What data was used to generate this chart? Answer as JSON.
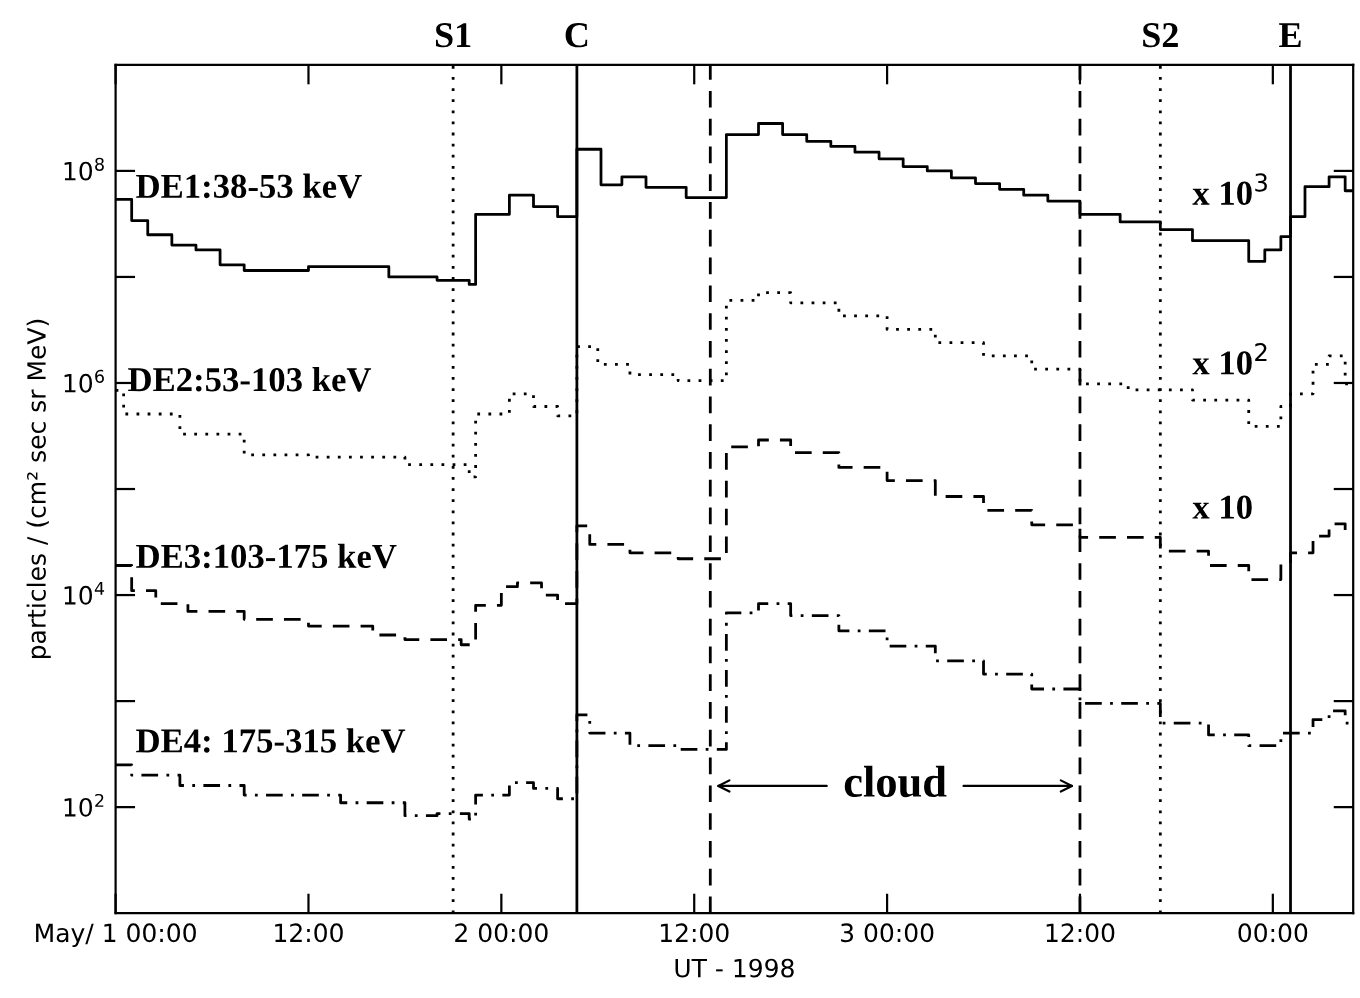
{
  "chart_data": {
    "type": "step",
    "xlabel": "UT - 1998",
    "ylabel": "particles / (cm² sec sr MeV)",
    "log": "y",
    "xlim": [
      "1998-05-01T00:00",
      "1998-05-04T05:00"
    ],
    "ylim": [
      10,
      1000000000
    ],
    "xticks": [
      {
        "value": "1998-05-01T00:00",
        "label": "May/ 1 00:00"
      },
      {
        "value": "1998-05-01T12:00",
        "label": "12:00"
      },
      {
        "value": "1998-05-02T00:00",
        "label": "2 00:00"
      },
      {
        "value": "1998-05-02T12:00",
        "label": "12:00"
      },
      {
        "value": "1998-05-03T00:00",
        "label": "3 00:00"
      },
      {
        "value": "1998-05-03T12:00",
        "label": "12:00"
      },
      {
        "value": "1998-05-04T00:00",
        "label": "00:00"
      }
    ],
    "yticks": [
      {
        "value": 100,
        "label": "10$^{2}$"
      },
      {
        "value": 1000,
        "label": null
      },
      {
        "value": 10000,
        "label": "10$^{4}$"
      },
      {
        "value": 100000,
        "label": null
      },
      {
        "value": 1000000,
        "label": "10$^{6}$"
      },
      {
        "value": 10000000,
        "label": null
      },
      {
        "value": 100000000,
        "label": "10$^{8}$"
      }
    ],
    "series": [
      {
        "name": "DE1:38-53 keV",
        "color": "#000000",
        "line_style": "solid",
        "x": [
          "1998-05-01T00:00",
          "1998-05-01T01:00",
          "1998-05-01T02:00",
          "1998-05-01T03:30",
          "1998-05-01T05:00",
          "1998-05-01T06:30",
          "1998-05-01T08:00",
          "1998-05-01T12:00",
          "1998-05-01T17:00",
          "1998-05-01T20:00",
          "1998-05-01T22:00",
          "1998-05-01T22:24",
          "1998-05-02T00:30",
          "1998-05-02T02:00",
          "1998-05-02T03:30",
          "1998-05-02T04:42",
          "1998-05-02T06:12",
          "1998-05-02T07:30",
          "1998-05-02T09:00",
          "1998-05-02T11:30",
          "1998-05-02T14:00",
          "1998-05-02T16:00",
          "1998-05-02T17:30",
          "1998-05-02T19:00",
          "1998-05-02T20:30",
          "1998-05-02T22:00",
          "1998-05-02T23:30",
          "1998-05-03T01:00",
          "1998-05-03T02:30",
          "1998-05-03T04:00",
          "1998-05-03T05:30",
          "1998-05-03T07:00",
          "1998-05-03T08:30",
          "1998-05-03T10:00",
          "1998-05-03T12:00",
          "1998-05-03T14:30",
          "1998-05-03T17:00",
          "1998-05-03T19:00",
          "1998-05-03T22:30",
          "1998-05-03T23:30",
          "1998-05-04T00:30",
          "1998-05-04T01:06",
          "1998-05-04T02:00",
          "1998-05-04T03:30",
          "1998-05-04T04:30",
          "1998-05-04T05:00"
        ],
        "values": [
          54000000,
          34000000,
          25000000,
          20000000,
          18000000,
          13000000,
          11500000,
          12500000,
          10000000,
          9300000,
          8500000,
          39000000,
          59000000,
          46000000,
          37000000,
          160000000,
          74000000,
          88000000,
          70000000,
          56000000,
          220000000,
          280000000,
          220000000,
          190000000,
          170000000,
          150000000,
          130000000,
          110000000,
          100000000,
          86000000,
          76000000,
          67000000,
          59000000,
          52000000,
          39000000,
          33000000,
          28000000,
          22000000,
          14000000,
          18000000,
          24000000,
          37000000,
          71000000,
          88000000,
          65000000,
          65000000
        ]
      },
      {
        "name": "DE2:53-103 keV",
        "color": "#000000",
        "line_style": "dotted",
        "x": [
          "1998-05-01T00:00",
          "1998-05-01T00:30",
          "1998-05-01T04:00",
          "1998-05-01T08:00",
          "1998-05-01T12:00",
          "1998-05-01T16:00",
          "1998-05-01T18:00",
          "1998-05-01T22:00",
          "1998-05-01T22:24",
          "1998-05-02T00:30",
          "1998-05-02T02:00",
          "1998-05-02T03:30",
          "1998-05-02T04:42",
          "1998-05-02T06:00",
          "1998-05-02T08:00",
          "1998-05-02T11:00",
          "1998-05-02T14:00",
          "1998-05-02T16:00",
          "1998-05-02T18:00",
          "1998-05-02T21:00",
          "1998-05-03T00:00",
          "1998-05-03T03:00",
          "1998-05-03T06:00",
          "1998-05-03T09:00",
          "1998-05-03T12:00",
          "1998-05-03T15:00",
          "1998-05-03T19:00",
          "1998-05-03T22:30",
          "1998-05-04T00:30",
          "1998-05-04T01:06",
          "1998-05-04T02:30",
          "1998-05-04T03:30",
          "1998-05-04T04:30",
          "1998-05-04T05:00"
        ],
        "values": [
          850000,
          510000,
          330000,
          210000,
          200000,
          200000,
          170000,
          130000,
          510000,
          790000,
          600000,
          490000,
          2200000,
          1500000,
          1200000,
          1050000,
          6000000,
          7100000,
          5700000,
          4300000,
          3200000,
          2400000,
          1800000,
          1350000,
          980000,
          860000,
          690000,
          390000,
          600000,
          790000,
          1500000,
          1800000,
          980000,
          980000
        ]
      },
      {
        "name": "DE3:103-175 keV",
        "color": "#000000",
        "line_style": "dashed",
        "x": [
          "1998-05-01T00:00",
          "1998-05-01T01:00",
          "1998-05-01T02:30",
          "1998-05-01T04:30",
          "1998-05-01T08:00",
          "1998-05-01T12:00",
          "1998-05-01T16:00",
          "1998-05-01T18:00",
          "1998-05-01T21:30",
          "1998-05-01T22:24",
          "1998-05-02T00:00",
          "1998-05-02T01:00",
          "1998-05-02T02:30",
          "1998-05-02T03:30",
          "1998-05-02T04:42",
          "1998-05-02T05:30",
          "1998-05-02T08:00",
          "1998-05-02T11:00",
          "1998-05-02T14:00",
          "1998-05-02T16:00",
          "1998-05-02T18:00",
          "1998-05-02T21:00",
          "1998-05-03T00:00",
          "1998-05-03T03:00",
          "1998-05-03T06:00",
          "1998-05-03T09:00",
          "1998-05-03T12:00",
          "1998-05-03T17:00",
          "1998-05-03T20:00",
          "1998-05-03T22:30",
          "1998-05-04T00:30",
          "1998-05-04T01:06",
          "1998-05-04T02:30",
          "1998-05-04T03:30",
          "1998-05-04T04:30",
          "1998-05-04T05:00"
        ],
        "values": [
          19000,
          11000,
          8300,
          7000,
          5900,
          5100,
          4200,
          3800,
          3400,
          8000,
          12000,
          13000,
          10000,
          8300,
          45000,
          30000,
          25000,
          22000,
          250000,
          290000,
          220000,
          160000,
          120000,
          85000,
          63000,
          46000,
          35000,
          26000,
          19000,
          14000,
          20000,
          25000,
          36000,
          47000,
          40000,
          40000
        ]
      },
      {
        "name": "DE4: 175-315 keV",
        "color": "#000000",
        "line_style": "dashdot",
        "x": [
          "1998-05-01T00:00",
          "1998-05-01T01:00",
          "1998-05-01T04:00",
          "1998-05-01T08:00",
          "1998-05-01T14:00",
          "1998-05-01T18:00",
          "1998-05-01T20:00",
          "1998-05-01T22:00",
          "1998-05-01T22:24",
          "1998-05-02T00:30",
          "1998-05-02T02:00",
          "1998-05-02T03:30",
          "1998-05-02T04:42",
          "1998-05-02T05:30",
          "1998-05-02T08:00",
          "1998-05-02T11:00",
          "1998-05-02T14:00",
          "1998-05-02T16:00",
          "1998-05-02T18:00",
          "1998-05-02T21:00",
          "1998-05-03T00:00",
          "1998-05-03T03:00",
          "1998-05-03T06:00",
          "1998-05-03T09:00",
          "1998-05-03T12:00",
          "1998-05-03T17:00",
          "1998-05-03T20:00",
          "1998-05-03T22:30",
          "1998-05-04T00:30",
          "1998-05-04T02:30",
          "1998-05-04T03:30",
          "1998-05-04T04:30",
          "1998-05-04T05:00"
        ],
        "values": [
          250,
          200,
          160,
          130,
          110,
          83,
          87,
          77,
          130,
          170,
          150,
          120,
          740,
          500,
          380,
          350,
          6800,
          8300,
          6400,
          4600,
          3300,
          2400,
          1800,
          1300,
          950,
          620,
          480,
          380,
          500,
          670,
          810,
          620,
          620
        ]
      }
    ],
    "ref_lines": [
      {
        "axis": "x",
        "value": "1998-05-01T21:00",
        "label": "S1",
        "line_style": "dotted",
        "color": "#000000"
      },
      {
        "axis": "x",
        "value": "1998-05-02T04:42",
        "label": "C",
        "line_style": "solid",
        "color": "#000000"
      },
      {
        "axis": "x",
        "value": "1998-05-02T13:00",
        "label": null,
        "line_style": "dashed",
        "color": "#000000"
      },
      {
        "axis": "x",
        "value": "1998-05-03T12:00",
        "label": null,
        "line_style": "dashed",
        "color": "#000000"
      },
      {
        "axis": "x",
        "value": "1998-05-03T17:00",
        "label": "S2",
        "line_style": "dotted",
        "color": "#000000"
      },
      {
        "axis": "x",
        "value": "1998-05-04T01:06",
        "label": "E",
        "line_style": "solid",
        "color": "#000000"
      }
    ],
    "annotations": [
      "x 10$^{3}$",
      "x 10$^{2}$",
      "x 10",
      "cloud"
    ]
  }
}
